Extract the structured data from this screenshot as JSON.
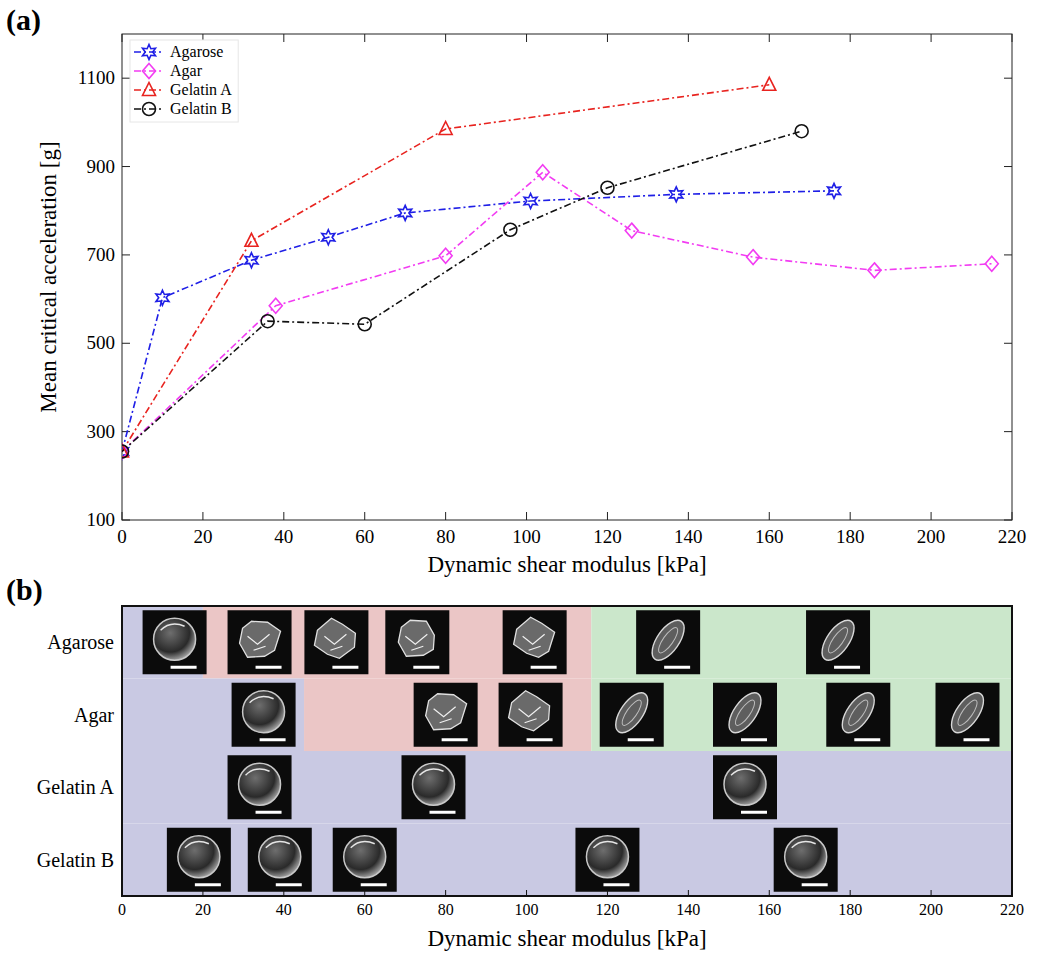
{
  "chart_data": [
    {
      "type": "line",
      "panel_label": "(a)",
      "x_label": "Dynamic shear modulus [kPa]",
      "y_label": "Mean critical acceleration [g]",
      "xlim": [
        0,
        220
      ],
      "xticks": [
        0,
        20,
        40,
        60,
        80,
        100,
        120,
        140,
        160,
        180,
        200,
        220
      ],
      "ylim": [
        100,
        1200
      ],
      "yticks": [
        100,
        300,
        500,
        700,
        900,
        1100
      ],
      "grid": false,
      "legend": "top-left",
      "series": [
        {
          "name": "Agarose",
          "color": "#1f1fe6",
          "marker": "hexagram",
          "line_style": "dashdot",
          "x": [
            0,
            10,
            32,
            51,
            70,
            101,
            137,
            176
          ],
          "values": [
            255,
            603,
            688,
            740,
            795,
            822,
            837,
            845
          ]
        },
        {
          "name": "Agar",
          "color": "#f23cf2",
          "marker": "diamond",
          "line_style": "dashdot",
          "x": [
            0,
            38,
            80,
            104,
            126,
            156,
            186,
            215
          ],
          "values": [
            255,
            585,
            698,
            887,
            755,
            695,
            665,
            680
          ]
        },
        {
          "name": "Gelatin A",
          "color": "#e8231f",
          "marker": "triangle",
          "line_style": "dashdot",
          "x": [
            0,
            32,
            80,
            160
          ],
          "values": [
            255,
            732,
            985,
            1085
          ]
        },
        {
          "name": "Gelatin B",
          "color": "#111111",
          "marker": "circle",
          "line_style": "dashdot",
          "x": [
            0,
            36,
            60,
            96,
            120,
            168
          ],
          "values": [
            255,
            550,
            543,
            757,
            852,
            980
          ]
        }
      ]
    },
    {
      "type": "image_grid",
      "panel_label": "(b)",
      "x_label": "Dynamic shear modulus [kPa]",
      "xlim": [
        0,
        220
      ],
      "xticks": [
        0,
        20,
        40,
        60,
        80,
        100,
        120,
        140,
        160,
        180,
        200,
        220
      ],
      "rows": [
        {
          "name": "Agarose",
          "regions": [
            {
              "range": [
                0,
                20
              ],
              "color": "#c9c9e3"
            },
            {
              "range": [
                20,
                116
              ],
              "color": "#ebc6c6"
            },
            {
              "range": [
                116,
                220
              ],
              "color": "#cbe7cb"
            }
          ],
          "images": [
            13,
            34,
            53,
            73,
            102,
            135,
            177
          ]
        },
        {
          "name": "Agar",
          "regions": [
            {
              "range": [
                0,
                45
              ],
              "color": "#c9c9e3"
            },
            {
              "range": [
                45,
                116
              ],
              "color": "#ebc6c6"
            },
            {
              "range": [
                116,
                220
              ],
              "color": "#cbe7cb"
            }
          ],
          "images": [
            35,
            80,
            101,
            126,
            154,
            182,
            209
          ]
        },
        {
          "name": "Gelatin A",
          "regions": [
            {
              "range": [
                0,
                220
              ],
              "color": "#c9c9e3"
            }
          ],
          "images": [
            34,
            77,
            154
          ]
        },
        {
          "name": "Gelatin B",
          "regions": [
            {
              "range": [
                0,
                220
              ],
              "color": "#c9c9e3"
            }
          ],
          "images": [
            19,
            39,
            60,
            120,
            169
          ]
        }
      ]
    }
  ]
}
